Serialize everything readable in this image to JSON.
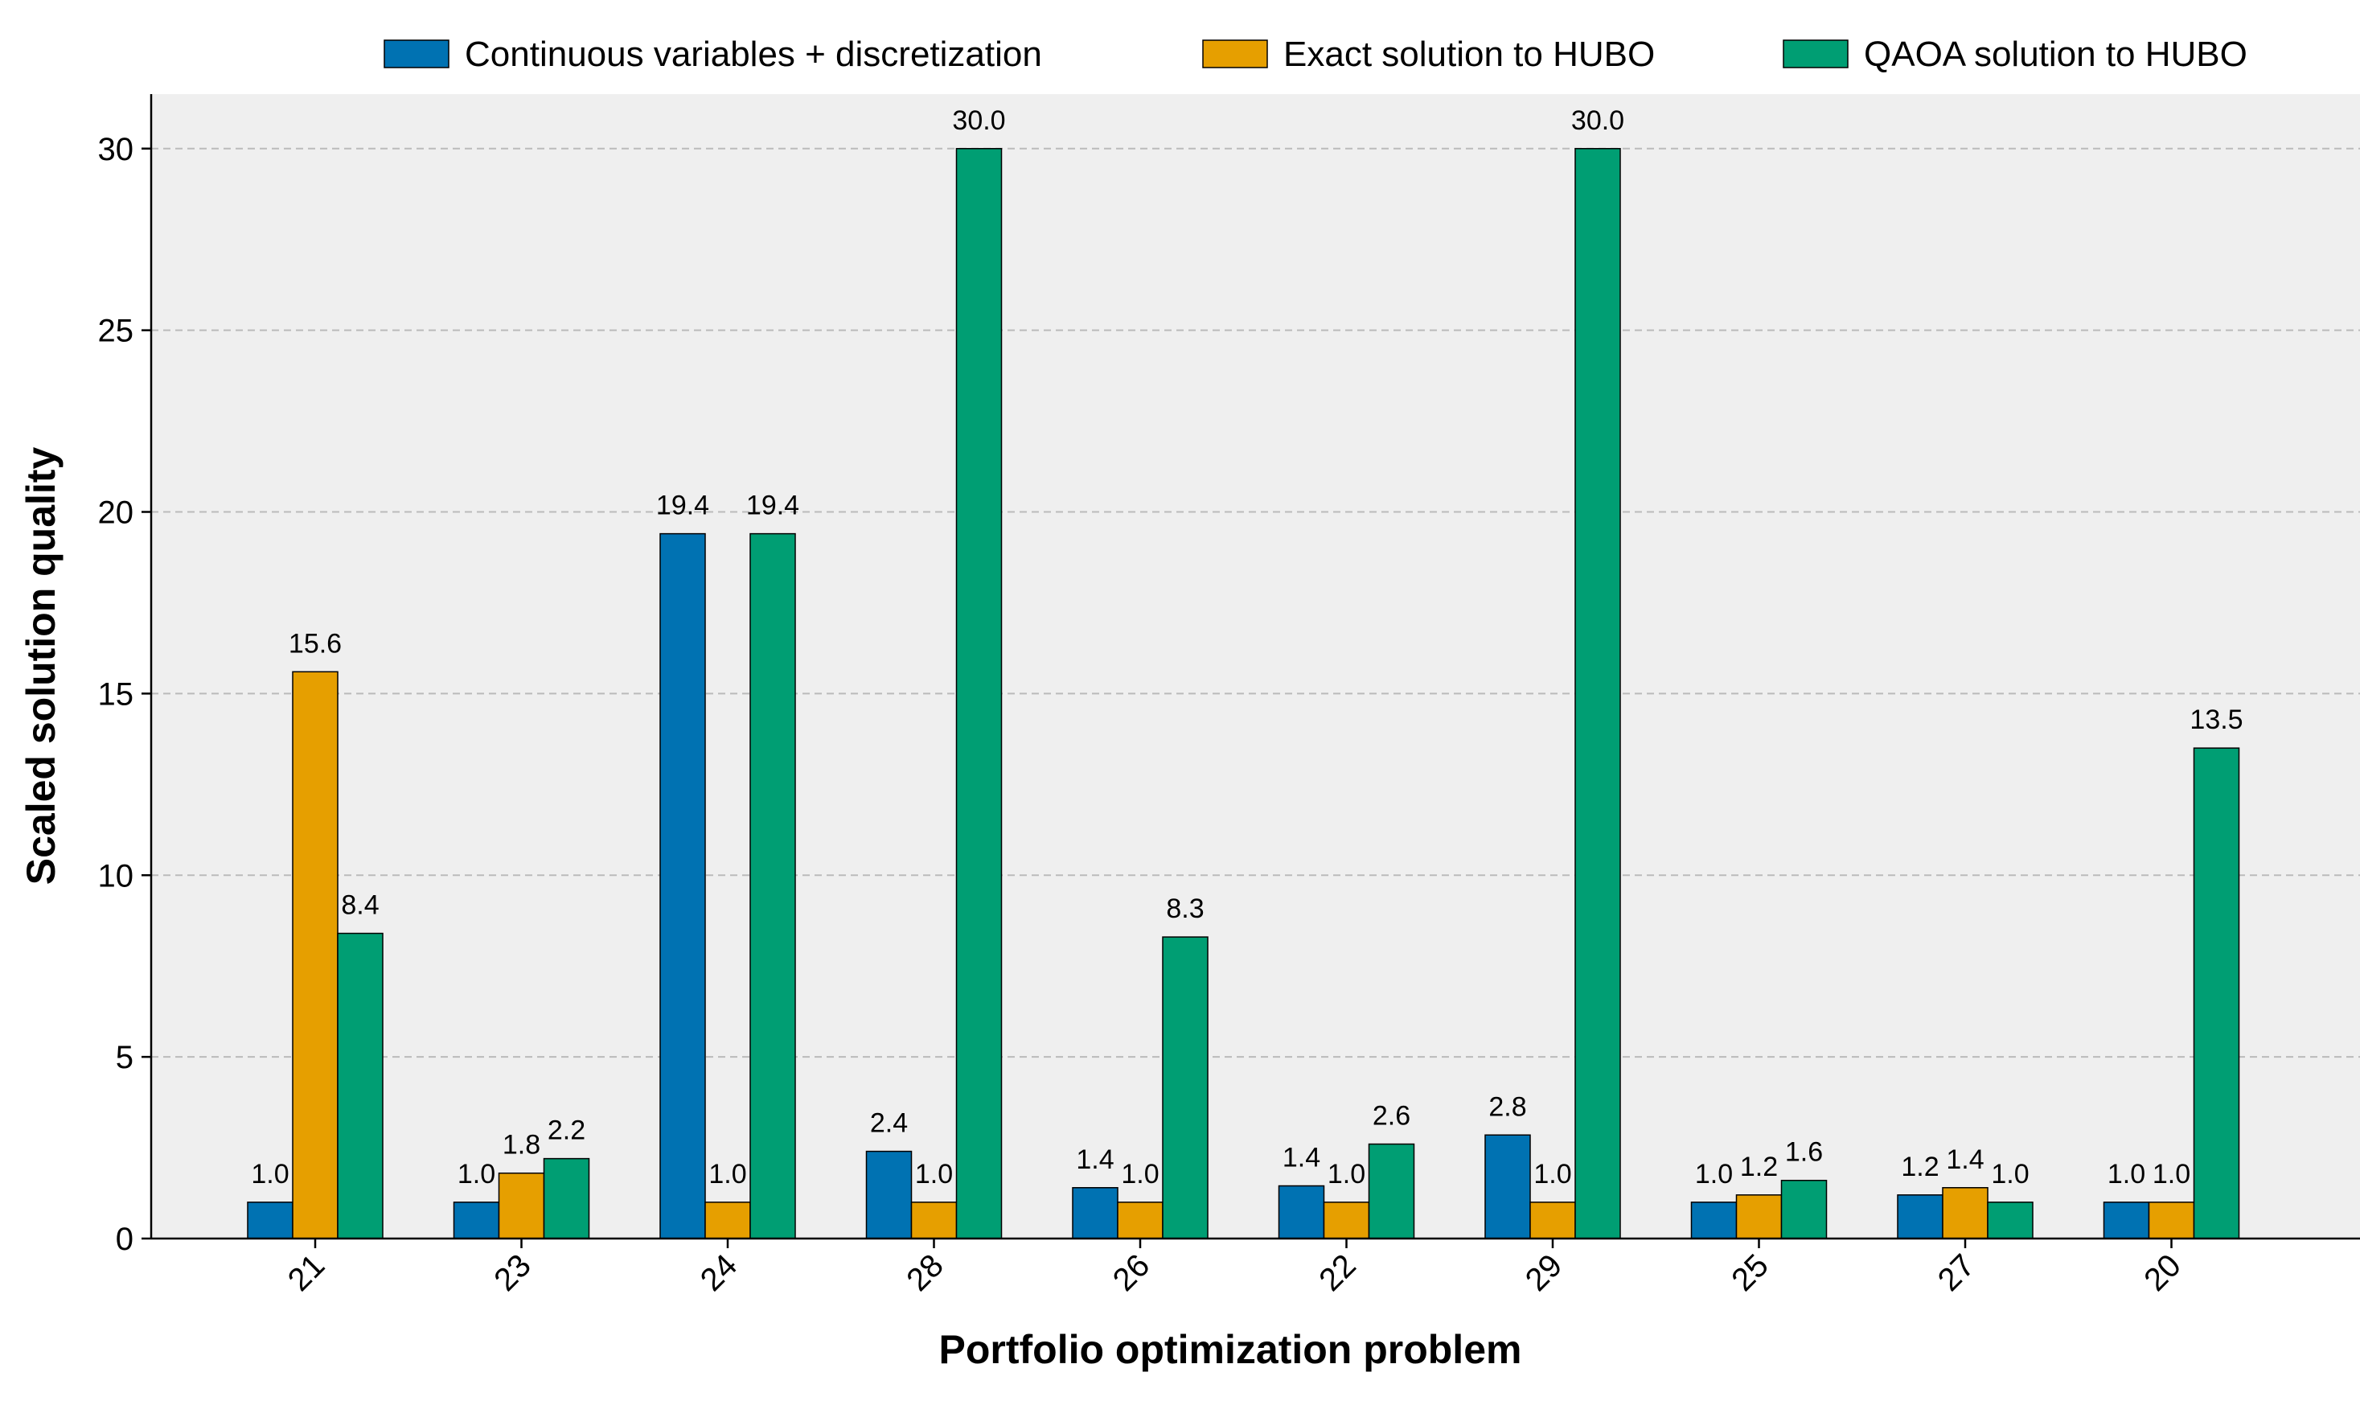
{
  "chart_data": {
    "type": "bar",
    "title": "",
    "xlabel": "Portfolio optimization problem",
    "ylabel": "Scaled solution quality",
    "ylim": [
      0,
      31.5
    ],
    "yticks": [
      0,
      5,
      10,
      15,
      20,
      25,
      30
    ],
    "grid": "horizontal dashed",
    "legend_position": "top-right",
    "categories": [
      "21",
      "23",
      "24",
      "28",
      "26",
      "22",
      "29",
      "25",
      "27",
      "20"
    ],
    "series": [
      {
        "name": "Continuous variables + discretization",
        "color": "#0072B2",
        "values": [
          1.0,
          1.0,
          19.4,
          2.4,
          1.4,
          1.45,
          2.85,
          1.0,
          1.2,
          1.0
        ],
        "labels": [
          "1.0",
          "1.0",
          "19.4",
          "2.4",
          "1.4",
          "1.4",
          "2.8",
          "1.0",
          "1.2",
          "1.0"
        ]
      },
      {
        "name": "Exact solution to HUBO",
        "color": "#E69F00",
        "values": [
          15.6,
          1.8,
          1.0,
          1.0,
          1.0,
          1.0,
          1.0,
          1.2,
          1.4,
          1.0
        ],
        "labels": [
          "15.6",
          "1.8",
          "1.0",
          "1.0",
          "1.0",
          "1.0",
          "1.0",
          "1.2",
          "1.4",
          "1.0"
        ]
      },
      {
        "name": "QAOA solution to HUBO",
        "color": "#009E73",
        "values": [
          8.4,
          2.2,
          19.4,
          30.0,
          8.3,
          2.6,
          30.0,
          1.6,
          1.0,
          13.5
        ],
        "labels": [
          "8.4",
          "2.2",
          "19.4",
          "30.0",
          "8.3",
          "2.6",
          "30.0",
          "1.6",
          "1.0",
          "13.5"
        ]
      }
    ],
    "colors": {
      "plot_background": "#EFEFEF",
      "grid": "#BBBBBB",
      "bar_edge": "#000000"
    }
  }
}
